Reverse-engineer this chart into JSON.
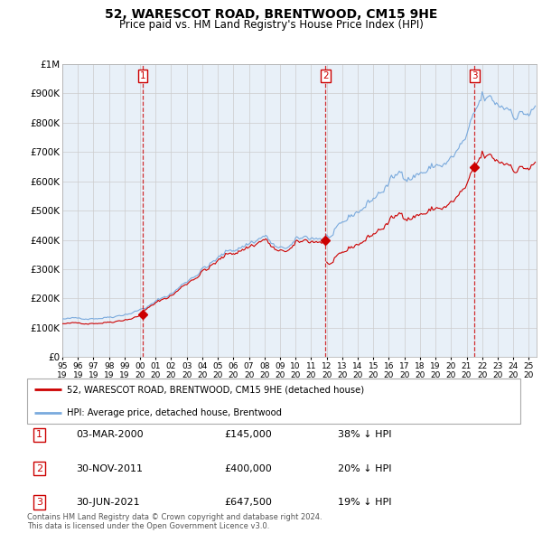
{
  "title": "52, WARESCOT ROAD, BRENTWOOD, CM15 9HE",
  "subtitle": "Price paid vs. HM Land Registry's House Price Index (HPI)",
  "title_fontsize": 10,
  "subtitle_fontsize": 8.5,
  "ylim": [
    0,
    1000000
  ],
  "yticks": [
    0,
    100000,
    200000,
    300000,
    400000,
    500000,
    600000,
    700000,
    800000,
    900000,
    1000000
  ],
  "ytick_labels": [
    "£0",
    "£100K",
    "£200K",
    "£300K",
    "£400K",
    "£500K",
    "£600K",
    "£700K",
    "£800K",
    "£900K",
    "£1M"
  ],
  "xmin": 1995.0,
  "xmax": 2025.5,
  "background_color": "#ffffff",
  "grid_color": "#cccccc",
  "plot_bg_color": "#e8f0f8",
  "sale_color": "#cc0000",
  "hpi_color": "#7aaadd",
  "shade_color": "#d0e4f5",
  "purchases": [
    {
      "num": 1,
      "x": 2000.17,
      "price": 145000,
      "pct": "38%",
      "label": "03-MAR-2000",
      "price_label": "£145,000"
    },
    {
      "num": 2,
      "x": 2011.92,
      "price": 400000,
      "pct": "20%",
      "label": "30-NOV-2011",
      "price_label": "£400,000"
    },
    {
      "num": 3,
      "x": 2021.5,
      "price": 647500,
      "pct": "19%",
      "label": "30-JUN-2021",
      "price_label": "£647,500"
    }
  ],
  "legend_sale_label": "52, WARESCOT ROAD, BRENTWOOD, CM15 9HE (detached house)",
  "legend_hpi_label": "HPI: Average price, detached house, Brentwood",
  "footnote": "Contains HM Land Registry data © Crown copyright and database right 2024.\nThis data is licensed under the Open Government Licence v3.0.",
  "xtick_years": [
    1995,
    1996,
    1997,
    1998,
    1999,
    2000,
    2001,
    2002,
    2003,
    2004,
    2005,
    2006,
    2007,
    2008,
    2009,
    2010,
    2011,
    2012,
    2013,
    2014,
    2015,
    2016,
    2017,
    2018,
    2019,
    2020,
    2021,
    2022,
    2023,
    2024,
    2025
  ]
}
